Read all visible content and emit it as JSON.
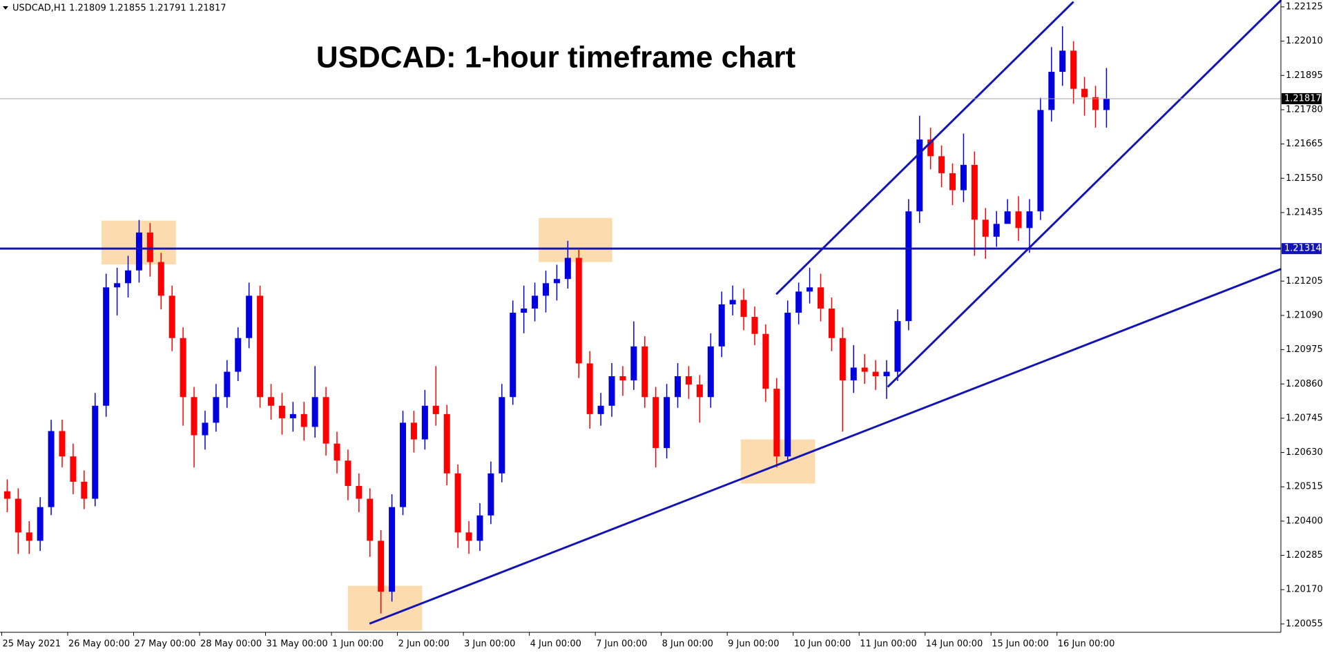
{
  "chart_data": {
    "type": "candlestick",
    "header": "USDCAD,H1  1.21809 1.21855 1.21791 1.21817",
    "title": "USDCAD: 1-hour timeframe chart",
    "up_color": "#0000e0",
    "down_color": "#ff0000",
    "line_color": "#1414b4",
    "zone_color": "#fbd5a0",
    "ylim": [
      1.20027,
      1.22148
    ],
    "yticks": [
      1.20055,
      {
        "value": 1.2017,
        "label": "1.20170"
      },
      1.20285,
      {
        "value": 1.204,
        "label": "1.20400"
      },
      1.20515,
      {
        "value": 1.2063,
        "label": "1.20630"
      },
      1.20745,
      {
        "value": 1.2086,
        "label": "1.20860"
      },
      1.20975,
      {
        "value": 1.2109,
        "label": "1.21090"
      },
      1.21205,
      1.21435,
      {
        "value": 1.2155,
        "label": "1.21550"
      },
      1.21665,
      {
        "value": 1.2178,
        "label": "1.21780"
      },
      1.21895,
      {
        "value": 1.2201,
        "label": "1.22010"
      },
      1.22125
    ],
    "xticks": [
      {
        "value": 0,
        "label": "25 May 2021"
      },
      {
        "value": 6,
        "label": "26 May 00:00"
      },
      {
        "value": 12,
        "label": "27 May 00:00"
      },
      {
        "value": 18,
        "label": "28 May 00:00"
      },
      {
        "value": 24,
        "label": "31 May 00:00"
      },
      {
        "value": 30,
        "label": "1 Jun 00:00"
      },
      {
        "value": 36,
        "label": "2 Jun 00:00"
      },
      {
        "value": 42,
        "label": "3 Jun 00:00"
      },
      {
        "value": 48,
        "label": "4 Jun 00:00"
      },
      {
        "value": 54,
        "label": "7 Jun 00:00"
      },
      {
        "value": 60,
        "label": "8 Jun 00:00"
      },
      {
        "value": 66,
        "label": "9 Jun 00:00"
      },
      {
        "value": 72,
        "label": "10 Jun 00:00"
      },
      {
        "value": 78,
        "label": "11 Jun 00:00"
      },
      {
        "value": 84,
        "label": "14 Jun 00:00"
      },
      {
        "value": 90,
        "label": "15 Jun 00:00"
      },
      {
        "value": 96,
        "label": "16 Jun 00:00"
      }
    ],
    "hline": 1.21314,
    "last_price": 1.21817,
    "ohlc": [
      [
        1.205,
        1.2054,
        1.2043,
        1.20475
      ],
      [
        1.20475,
        1.2051,
        1.2029,
        1.20362
      ],
      [
        1.20362,
        1.204,
        1.2029,
        1.20334
      ],
      [
        1.20334,
        1.2048,
        1.203,
        1.20447
      ],
      [
        1.20447,
        1.2074,
        1.2042,
        1.20702
      ],
      [
        1.20702,
        1.2074,
        1.2058,
        1.20617
      ],
      [
        1.20617,
        1.2066,
        1.2049,
        1.20532
      ],
      [
        1.20532,
        1.2057,
        1.2044,
        1.20475
      ],
      [
        1.20475,
        1.2083,
        1.2045,
        1.20787
      ],
      [
        1.20787,
        1.2123,
        1.2075,
        1.21184
      ],
      [
        1.21184,
        1.2125,
        1.2109,
        1.21198
      ],
      [
        1.21198,
        1.2129,
        1.2115,
        1.21241
      ],
      [
        1.21241,
        1.2141,
        1.212,
        1.21368
      ],
      [
        1.21368,
        1.214,
        1.2122,
        1.21269
      ],
      [
        1.21269,
        1.213,
        1.2111,
        1.21156
      ],
      [
        1.21156,
        1.2119,
        1.2097,
        1.21014
      ],
      [
        1.21014,
        1.2105,
        1.2072,
        1.20816
      ],
      [
        1.20816,
        1.2085,
        1.2058,
        1.20688
      ],
      [
        1.20688,
        1.2077,
        1.2064,
        1.2073
      ],
      [
        1.2073,
        1.2086,
        1.207,
        1.20816
      ],
      [
        1.20816,
        1.2094,
        1.2078,
        1.20901
      ],
      [
        1.20901,
        1.2105,
        1.2087,
        1.21014
      ],
      [
        1.21014,
        1.212,
        1.2098,
        1.21156
      ],
      [
        1.21156,
        1.2119,
        1.2078,
        1.20816
      ],
      [
        1.20816,
        1.2086,
        1.2074,
        1.20787
      ],
      [
        1.20787,
        1.2083,
        1.2069,
        1.20745
      ],
      [
        1.20745,
        1.208,
        1.207,
        1.20759
      ],
      [
        1.20759,
        1.208,
        1.2067,
        1.20716
      ],
      [
        1.20716,
        1.2092,
        1.2068,
        1.20816
      ],
      [
        1.20816,
        1.2085,
        1.2062,
        1.2066
      ],
      [
        1.2066,
        1.207,
        1.2056,
        1.20603
      ],
      [
        1.20603,
        1.2064,
        1.2047,
        1.20518
      ],
      [
        1.20518,
        1.2056,
        1.2043,
        1.20475
      ],
      [
        1.20475,
        1.2051,
        1.2028,
        1.20334
      ],
      [
        1.20334,
        1.2037,
        1.2009,
        1.20163
      ],
      [
        1.20163,
        1.2049,
        1.2013,
        1.20447
      ],
      [
        1.20447,
        1.2077,
        1.2042,
        1.2073
      ],
      [
        1.2073,
        1.2077,
        1.2063,
        1.20674
      ],
      [
        1.20674,
        1.2084,
        1.2064,
        1.20787
      ],
      [
        1.20787,
        1.2092,
        1.2072,
        1.20759
      ],
      [
        1.20759,
        1.2079,
        1.2052,
        1.2056
      ],
      [
        1.2056,
        1.2059,
        1.2031,
        1.20362
      ],
      [
        1.20362,
        1.204,
        1.2029,
        1.20334
      ],
      [
        1.20334,
        1.2046,
        1.203,
        1.20419
      ],
      [
        1.20419,
        1.206,
        1.2039,
        1.2056
      ],
      [
        1.2056,
        1.2086,
        1.2053,
        1.20816
      ],
      [
        1.20816,
        1.2114,
        1.2079,
        1.21099
      ],
      [
        1.21099,
        1.2119,
        1.2103,
        1.21113
      ],
      [
        1.21113,
        1.212,
        1.2107,
        1.21156
      ],
      [
        1.21156,
        1.2124,
        1.211,
        1.21198
      ],
      [
        1.21198,
        1.2126,
        1.2114,
        1.21212
      ],
      [
        1.21212,
        1.2134,
        1.2118,
        1.21283
      ],
      [
        1.21283,
        1.2131,
        1.2088,
        1.20929
      ],
      [
        1.20929,
        1.2097,
        1.2071,
        1.20759
      ],
      [
        1.20759,
        1.2083,
        1.2072,
        1.20787
      ],
      [
        1.20787,
        1.2093,
        1.2075,
        1.20886
      ],
      [
        1.20886,
        1.2092,
        1.2082,
        1.20872
      ],
      [
        1.20872,
        1.2107,
        1.2084,
        1.20986
      ],
      [
        1.20986,
        1.2102,
        1.2078,
        1.20816
      ],
      [
        1.20816,
        1.2085,
        1.2058,
        1.20645
      ],
      [
        1.20645,
        1.2086,
        1.2061,
        1.20816
      ],
      [
        1.20816,
        1.2093,
        1.2078,
        1.20886
      ],
      [
        1.20886,
        1.2092,
        1.2081,
        1.20858
      ],
      [
        1.20858,
        1.2089,
        1.2073,
        1.20816
      ],
      [
        1.20816,
        1.2103,
        1.2078,
        1.20986
      ],
      [
        1.20986,
        1.2117,
        1.2095,
        1.21127
      ],
      [
        1.21127,
        1.2119,
        1.2109,
        1.21142
      ],
      [
        1.21142,
        1.2118,
        1.2104,
        1.21085
      ],
      [
        1.21085,
        1.2112,
        1.2099,
        1.21028
      ],
      [
        1.21028,
        1.2106,
        1.208,
        1.20844
      ],
      [
        1.20844,
        1.2088,
        1.2058,
        1.20617
      ],
      [
        1.20617,
        1.2114,
        1.206,
        1.21099
      ],
      [
        1.21099,
        1.212,
        1.2106,
        1.2117
      ],
      [
        1.2117,
        1.2125,
        1.2113,
        1.21184
      ],
      [
        1.21184,
        1.2123,
        1.2107,
        1.21113
      ],
      [
        1.21113,
        1.2115,
        1.2097,
        1.21014
      ],
      [
        1.21014,
        1.2105,
        1.207,
        1.20872
      ],
      [
        1.20872,
        1.2099,
        1.2083,
        1.20915
      ],
      [
        1.20915,
        1.2096,
        1.2086,
        1.20901
      ],
      [
        1.20901,
        1.2094,
        1.2084,
        1.20886
      ],
      [
        1.20886,
        1.2094,
        1.2081,
        1.20901
      ],
      [
        1.20901,
        1.2111,
        1.2087,
        1.21071
      ],
      [
        1.21071,
        1.2148,
        1.2104,
        1.21439
      ],
      [
        1.21439,
        1.2176,
        1.214,
        1.2168
      ],
      [
        1.2168,
        1.2172,
        1.2158,
        1.21624
      ],
      [
        1.21624,
        1.2166,
        1.2152,
        1.21567
      ],
      [
        1.21567,
        1.216,
        1.2146,
        1.2151
      ],
      [
        1.2151,
        1.217,
        1.2147,
        1.21595
      ],
      [
        1.21595,
        1.2164,
        1.2129,
        1.21411
      ],
      [
        1.21411,
        1.2145,
        1.2128,
        1.21354
      ],
      [
        1.21354,
        1.2144,
        1.2132,
        1.21397
      ],
      [
        1.21397,
        1.2148,
        1.214,
        1.21439
      ],
      [
        1.21439,
        1.2149,
        1.2134,
        1.21383
      ],
      [
        1.21383,
        1.2148,
        1.213,
        1.21439
      ],
      [
        1.21439,
        1.2182,
        1.2141,
        1.21779
      ],
      [
        1.21779,
        1.2199,
        1.2174,
        1.21907
      ],
      [
        1.21907,
        1.2206,
        1.2186,
        1.21978
      ],
      [
        1.21978,
        1.2201,
        1.218,
        1.2185
      ],
      [
        1.2185,
        1.2189,
        1.2176,
        1.21822
      ],
      [
        1.21822,
        1.2186,
        1.2172,
        1.21779
      ],
      [
        1.21779,
        1.2192,
        1.2172,
        1.21817
      ]
    ],
    "trendlines": [
      {
        "x": [
          69.96,
          97.0
        ],
        "y": [
          1.21161,
          1.22142
        ]
      },
      {
        "x": [
          80.1,
          115.9
        ],
        "y": [
          1.2085,
          1.22148
        ]
      },
      {
        "x": [
          32.96,
          115.9
        ],
        "y": [
          1.20056,
          1.21246
        ]
      }
    ],
    "zones": [
      {
        "x": [
          8.58,
          15.35
        ],
        "y": [
          1.21261,
          1.21408
        ]
      },
      {
        "x": [
          48.35,
          55.04
        ],
        "y": [
          1.21269,
          1.21417
        ]
      },
      {
        "x": [
          31.0,
          37.75
        ],
        "y": [
          1.20033,
          1.20183
        ]
      },
      {
        "x": [
          66.73,
          73.5
        ],
        "y": [
          1.20526,
          1.20674
        ]
      }
    ]
  }
}
